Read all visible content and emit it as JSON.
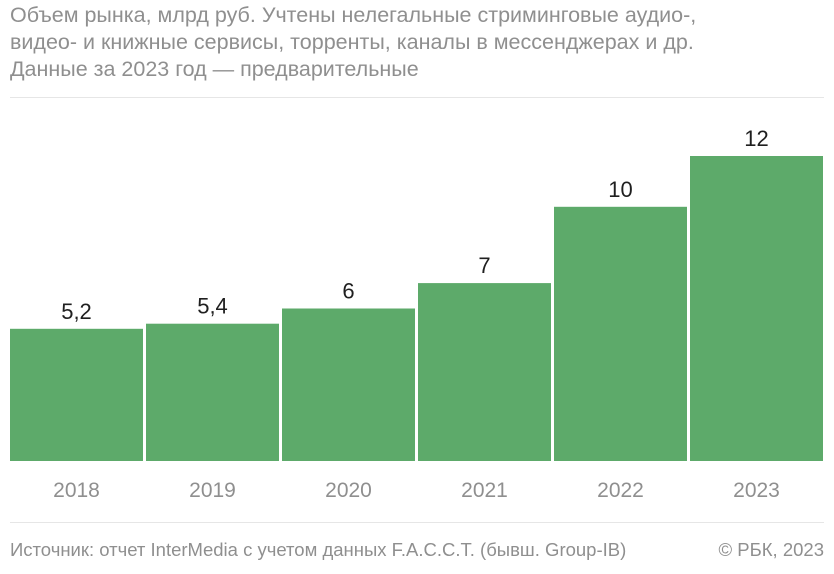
{
  "chart_data": {
    "type": "bar",
    "subtitle": "Объем рынка, млрд руб. Учтены нелегальные стриминговые аудио-,\nвидео- и книжные сервисы, торренты, каналы в мессенджерах и др.\nДанные за 2023 год — предварительные",
    "categories": [
      "2018",
      "2019",
      "2020",
      "2021",
      "2022",
      "2023"
    ],
    "values": [
      5.2,
      5.4,
      6,
      7,
      10,
      12
    ],
    "value_labels": [
      "5,2",
      "5,4",
      "6",
      "7",
      "10",
      "12"
    ],
    "ylim": [
      0,
      12
    ],
    "bar_color": "#5daa6a",
    "grid": false,
    "legend": false
  },
  "footer": {
    "source": "Источник: отчет InterMedia с учетом данных F.A.C.C.T. (бывш. Group-IB)",
    "copyright": "© РБК, 2023"
  },
  "colors": {
    "text_muted": "#8f8f8f",
    "value_label": "#1f1f1f",
    "rule": "#e6e6e6"
  }
}
